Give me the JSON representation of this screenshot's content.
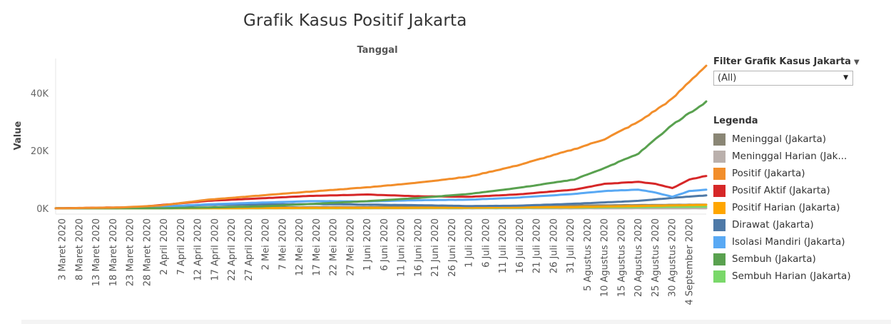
{
  "title": "Grafik Kasus Positif Jakarta",
  "filter": {
    "title": "Filter Grafik Kasus Jakarta",
    "value": "(All)"
  },
  "legend": {
    "title": "Legenda",
    "items": [
      {
        "label": "Meninggal (Jakarta)",
        "color": "#8a8675"
      },
      {
        "label": "Meninggal Harian (Jak...",
        "color": "#bab0ac"
      },
      {
        "label": "Positif (Jakarta)",
        "color": "#f28e2b"
      },
      {
        "label": "Positif Aktif (Jakarta)",
        "color": "#d62728"
      },
      {
        "label": "Positif Harian (Jakarta)",
        "color": "#ffa600"
      },
      {
        "label": "Dirawat (Jakarta)",
        "color": "#4e79a7"
      },
      {
        "label": "Isolasi Mandiri (Jakarta)",
        "color": "#59a9f4"
      },
      {
        "label": "Sembuh (Jakarta)",
        "color": "#59a14f"
      },
      {
        "label": "Sembuh Harian (Jakarta)",
        "color": "#7ad86a"
      }
    ]
  },
  "chart_data": {
    "type": "line",
    "title": "Grafik Kasus Positif Jakarta",
    "top_axis_label": "Tanggal",
    "ylabel": "Value",
    "ylim": [
      -2000,
      52000
    ],
    "y_ticks": [
      0,
      20000,
      40000
    ],
    "y_tick_labels": [
      "0K",
      "20K",
      "40K"
    ],
    "x_range": [
      "2020-03-01",
      "2020-09-09"
    ],
    "x_tick_labels": [
      "3 Maret 2020",
      "8 Maret 2020",
      "13 Maret 2020",
      "18 Maret 2020",
      "23 Maret 2020",
      "28 Maret 2020",
      "2 April 2020",
      "7 April 2020",
      "12 April 2020",
      "17 April 2020",
      "22 April 2020",
      "27 April 2020",
      "2 Mei 2020",
      "7 Mei 2020",
      "12 Mei 2020",
      "17 Mei 2020",
      "22 Mei 2020",
      "27 Mei 2020",
      "1 Juni 2020",
      "6 Juni 2020",
      "11 Juni 2020",
      "16 Juni 2020",
      "21 Juni 2020",
      "26 Juni 2020",
      "1 Juli 2020",
      "6 Juli 2020",
      "11 Juli 2020",
      "16 Juli 2020",
      "21 Juli 2020",
      "26 Juli 2020",
      "31 Juli 2020",
      "5 Agustus 2020",
      "10 Agustus 2020",
      "15 Agustus 2020",
      "20 Agustus 2020",
      "25 Agustus 2020",
      "30 Agustus 2020",
      "4 September 2020"
    ],
    "x_tick_dates": [
      "2020-03-03",
      "2020-03-08",
      "2020-03-13",
      "2020-03-18",
      "2020-03-23",
      "2020-03-28",
      "2020-04-02",
      "2020-04-07",
      "2020-04-12",
      "2020-04-17",
      "2020-04-22",
      "2020-04-27",
      "2020-05-02",
      "2020-05-07",
      "2020-05-12",
      "2020-05-17",
      "2020-05-22",
      "2020-05-27",
      "2020-06-01",
      "2020-06-06",
      "2020-06-11",
      "2020-06-16",
      "2020-06-21",
      "2020-06-26",
      "2020-07-01",
      "2020-07-06",
      "2020-07-11",
      "2020-07-16",
      "2020-07-21",
      "2020-07-26",
      "2020-07-31",
      "2020-08-05",
      "2020-08-10",
      "2020-08-15",
      "2020-08-20",
      "2020-08-25",
      "2020-08-30",
      "2020-09-04"
    ],
    "grid": false,
    "legend_position": "right",
    "series": [
      {
        "name": "Meninggal (Jakarta)",
        "color": "#8a8675",
        "x": [
          "2020-03-01",
          "2020-04-01",
          "2020-05-01",
          "2020-06-01",
          "2020-07-01",
          "2020-08-01",
          "2020-09-09"
        ],
        "y": [
          0,
          100,
          300,
          450,
          650,
          950,
          1300
        ]
      },
      {
        "name": "Meninggal Harian (Jak...",
        "color": "#bab0ac",
        "x": [
          "2020-03-01",
          "2020-04-15",
          "2020-06-01",
          "2020-08-01",
          "2020-09-09"
        ],
        "y": [
          0,
          10,
          5,
          10,
          20
        ]
      },
      {
        "name": "Sembuh Harian (Jakarta)",
        "color": "#7ad86a",
        "x": [
          "2020-03-01",
          "2020-05-01",
          "2020-07-01",
          "2020-08-01",
          "2020-09-09"
        ],
        "y": [
          0,
          30,
          150,
          300,
          600
        ]
      },
      {
        "name": "Positif Harian (Jakarta)",
        "color": "#ffa600",
        "x": [
          "2020-03-01",
          "2020-05-01",
          "2020-07-01",
          "2020-08-01",
          "2020-09-09"
        ],
        "y": [
          0,
          100,
          250,
          450,
          1200
        ]
      },
      {
        "name": "Dirawat (Jakarta)",
        "color": "#4e79a7",
        "x": [
          "2020-03-01",
          "2020-03-25",
          "2020-04-15",
          "2020-05-15",
          "2020-06-15",
          "2020-07-01",
          "2020-07-15",
          "2020-08-01",
          "2020-08-20",
          "2020-09-01",
          "2020-09-09"
        ],
        "y": [
          0,
          200,
          1200,
          1500,
          1100,
          800,
          900,
          1600,
          2600,
          3800,
          4500
        ]
      },
      {
        "name": "Isolasi Mandiri (Jakarta)",
        "color": "#59a9f4",
        "x": [
          "2020-03-01",
          "2020-03-25",
          "2020-04-15",
          "2020-05-01",
          "2020-05-15",
          "2020-06-01",
          "2020-06-15",
          "2020-07-01",
          "2020-07-15",
          "2020-08-01",
          "2020-08-10",
          "2020-08-20",
          "2020-08-25",
          "2020-08-30",
          "2020-09-04",
          "2020-09-09"
        ],
        "y": [
          0,
          200,
          1400,
          2000,
          2500,
          2400,
          2800,
          3000,
          3700,
          5000,
          6000,
          6500,
          5500,
          4000,
          6000,
          6500
        ]
      },
      {
        "name": "Positif Aktif (Jakarta)",
        "color": "#d62728",
        "x": [
          "2020-03-01",
          "2020-03-25",
          "2020-04-15",
          "2020-05-01",
          "2020-05-15",
          "2020-06-01",
          "2020-06-15",
          "2020-07-01",
          "2020-07-15",
          "2020-08-01",
          "2020-08-10",
          "2020-08-20",
          "2020-08-25",
          "2020-08-30",
          "2020-09-04",
          "2020-09-09"
        ],
        "y": [
          0,
          400,
          2600,
          3500,
          4300,
          4800,
          4200,
          4000,
          4800,
          6500,
          8500,
          9200,
          8500,
          7000,
          10000,
          11300
        ]
      },
      {
        "name": "Sembuh (Jakarta)",
        "color": "#59a14f",
        "x": [
          "2020-03-01",
          "2020-04-01",
          "2020-04-15",
          "2020-05-01",
          "2020-05-15",
          "2020-06-01",
          "2020-06-15",
          "2020-07-01",
          "2020-07-15",
          "2020-08-01",
          "2020-08-10",
          "2020-08-20",
          "2020-08-25",
          "2020-08-30",
          "2020-09-04",
          "2020-09-09"
        ],
        "y": [
          0,
          50,
          300,
          700,
          1500,
          2500,
          3500,
          5000,
          7000,
          10000,
          14000,
          19000,
          24000,
          29000,
          33000,
          37000
        ]
      },
      {
        "name": "Positif (Jakarta)",
        "color": "#f28e2b",
        "x": [
          "2020-03-01",
          "2020-03-20",
          "2020-04-01",
          "2020-04-15",
          "2020-05-01",
          "2020-05-15",
          "2020-06-01",
          "2020-06-15",
          "2020-07-01",
          "2020-07-15",
          "2020-08-01",
          "2020-08-10",
          "2020-08-20",
          "2020-08-30",
          "2020-09-04",
          "2020-09-09"
        ],
        "y": [
          0,
          300,
          1000,
          3000,
          4500,
          5800,
          7300,
          8800,
          11000,
          14800,
          20500,
          24000,
          30000,
          38000,
          44000,
          49500
        ]
      }
    ]
  }
}
